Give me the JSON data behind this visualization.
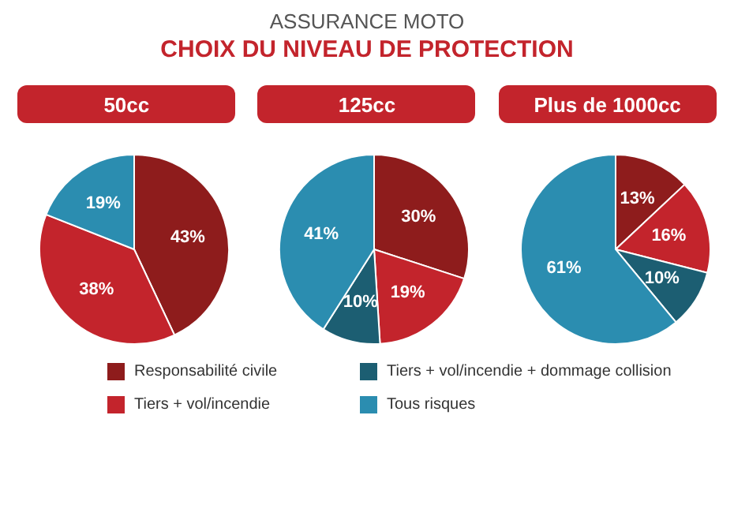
{
  "chart_data": [
    {
      "type": "pie",
      "title": "50cc",
      "annotations": [
        "ASSURANCE MOTO",
        "CHOIX DU NIVEAU DE PROTECTION"
      ],
      "legend": "bottom",
      "categories": [
        "Responsabilité civile",
        "Tiers + vol/incendie",
        "Tiers + vol/incendie + dommage collision",
        "Tous risques"
      ],
      "values": [
        43,
        38,
        0,
        19
      ],
      "value_labels": [
        "43%",
        "38%",
        null,
        "19%"
      ],
      "colors": [
        "#8e1c1c",
        "#c3242c",
        "#1c5e72",
        "#2b8db0"
      ]
    },
    {
      "type": "pie",
      "title": "125cc",
      "categories": [
        null,
        null,
        null,
        null
      ],
      "values": [
        30,
        19,
        10,
        41
      ],
      "value_labels": [
        "30%",
        "19%",
        "10%",
        "41%"
      ],
      "colors": [
        "#8e1c1c",
        "#c3242c",
        "#1c5e72",
        "#2b8db0"
      ]
    },
    {
      "type": "pie",
      "title": "Plus de 1000cc",
      "categories": [
        null,
        null,
        null,
        null
      ],
      "values": [
        13,
        16,
        10,
        61
      ],
      "value_labels": [
        "13%",
        "16%",
        "10%",
        "61%"
      ],
      "colors": [
        "#8e1c1c",
        "#c3242c",
        "#1c5e72",
        "#2b8db0"
      ]
    }
  ]
}
